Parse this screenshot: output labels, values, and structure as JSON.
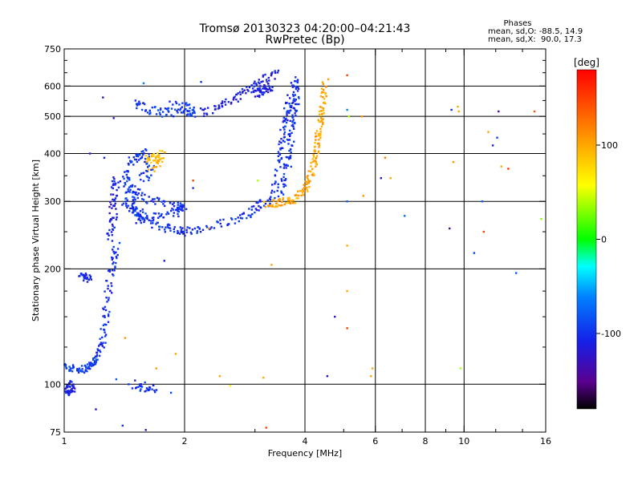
{
  "header": {
    "title": "Tromsø 20130323 04:20:00–04:21:43",
    "subtitle": "RwPretec (Bp)",
    "phases_title": "Phases",
    "phases_o": "mean, sd,O: -88.5, 14.9",
    "phases_x": "mean, sd,X:  90.0, 17.3"
  },
  "colorbar": {
    "label": "[deg]",
    "ticks": [
      "100",
      "0",
      "-100"
    ],
    "tick_values": [
      100,
      0,
      -100
    ],
    "range": [
      -180,
      180
    ]
  },
  "chart_data": {
    "type": "scatter",
    "xlabel": "Frequency [MHz]",
    "ylabel": "Stationary phase Virtual Height [km]",
    "x_scale": "log",
    "y_scale": "log",
    "xlim": [
      1,
      16
    ],
    "ylim": [
      75,
      750
    ],
    "grid": true,
    "x_ticks": [
      1,
      2,
      4,
      6,
      8,
      10,
      16
    ],
    "x_tick_labels": [
      "1",
      "2",
      "4",
      "6",
      "8",
      "10",
      "16"
    ],
    "x_gridlines": [
      2,
      4,
      6,
      8,
      10
    ],
    "x_minor_ticks": [
      3,
      5,
      7,
      9,
      12,
      14
    ],
    "y_ticks": [
      75,
      100,
      200,
      300,
      400,
      500,
      600,
      750
    ],
    "y_tick_labels": [
      "75",
      "100",
      "200",
      "300",
      "400",
      "500",
      "600",
      "750"
    ],
    "y_gridlines": [
      100,
      200,
      300,
      400,
      500,
      600
    ],
    "y_minor_ticks": [
      125,
      150,
      175,
      250,
      350,
      450,
      550,
      650,
      700
    ],
    "traces": [
      {
        "phase": -110,
        "spread": 0.03,
        "points": [
          [
            1.0,
            98
          ],
          [
            1.02,
            95
          ],
          [
            1.05,
            97
          ],
          [
            1.03,
            101
          ]
        ]
      },
      {
        "phase": -95,
        "spread": 0.03,
        "points": [
          [
            1.0,
            112
          ],
          [
            1.05,
            110
          ],
          [
            1.1,
            109
          ],
          [
            1.15,
            111
          ],
          [
            1.18,
            113
          ],
          [
            1.2,
            116
          ]
        ]
      },
      {
        "phase": -100,
        "spread": 0.04,
        "points": [
          [
            1.2,
            118
          ],
          [
            1.24,
            125
          ],
          [
            1.26,
            140
          ],
          [
            1.28,
            160
          ],
          [
            1.3,
            190
          ],
          [
            1.33,
            210
          ],
          [
            1.35,
            230
          ]
        ]
      },
      {
        "phase": -110,
        "spread": 0.03,
        "points": [
          [
            1.1,
            190
          ],
          [
            1.13,
            192
          ],
          [
            1.16,
            188
          ]
        ]
      },
      {
        "phase": -110,
        "spread": 0.05,
        "points": [
          [
            1.3,
            240
          ],
          [
            1.32,
            265
          ],
          [
            1.33,
            290
          ],
          [
            1.34,
            320
          ],
          [
            1.36,
            350
          ]
        ]
      },
      {
        "phase": -100,
        "spread": 0.04,
        "points": [
          [
            1.4,
            300
          ],
          [
            1.5,
            285
          ],
          [
            1.6,
            270
          ],
          [
            1.75,
            258
          ],
          [
            1.9,
            252
          ],
          [
            2.0,
            250
          ],
          [
            2.2,
            252
          ],
          [
            2.5,
            262
          ],
          [
            2.8,
            275
          ],
          [
            3.0,
            288
          ],
          [
            3.2,
            300
          ],
          [
            3.5,
            320
          ],
          [
            3.6,
            360
          ],
          [
            3.65,
            400
          ],
          [
            3.7,
            450
          ],
          [
            3.75,
            500
          ],
          [
            3.8,
            550
          ],
          [
            3.8,
            600
          ],
          [
            3.75,
            620
          ]
        ]
      },
      {
        "phase": -100,
        "spread": 0.035,
        "points": [
          [
            1.45,
            330
          ],
          [
            1.55,
            310
          ],
          [
            1.7,
            300
          ],
          [
            1.9,
            292
          ],
          [
            2.0,
            290
          ],
          [
            1.9,
            280
          ],
          [
            1.7,
            275
          ],
          [
            1.5,
            268
          ]
        ]
      },
      {
        "phase": -95,
        "spread": 0.04,
        "points": [
          [
            1.42,
            360
          ],
          [
            1.44,
            330
          ],
          [
            1.48,
            300
          ],
          [
            1.52,
            280
          ],
          [
            1.56,
            265
          ]
        ]
      },
      {
        "phase": -100,
        "spread": 0.04,
        "points": [
          [
            1.45,
            380
          ],
          [
            1.52,
            390
          ],
          [
            1.6,
            400
          ],
          [
            1.65,
            360
          ],
          [
            1.55,
            340
          ]
        ]
      },
      {
        "phase": -95,
        "spread": 0.04,
        "points": [
          [
            1.5,
            545
          ],
          [
            1.6,
            525
          ],
          [
            1.75,
            512
          ],
          [
            1.9,
            510
          ],
          [
            2.1,
            510
          ],
          [
            2.05,
            525
          ],
          [
            1.85,
            535
          ]
        ]
      },
      {
        "phase": -110,
        "spread": 0.04,
        "points": [
          [
            2.2,
            510
          ],
          [
            2.4,
            525
          ],
          [
            2.6,
            545
          ],
          [
            2.8,
            575
          ],
          [
            3.0,
            600
          ],
          [
            3.2,
            625
          ],
          [
            3.4,
            645
          ]
        ]
      },
      {
        "phase": -110,
        "spread": 0.035,
        "points": [
          [
            3.0,
            570
          ],
          [
            3.1,
            580
          ],
          [
            3.2,
            590
          ],
          [
            3.3,
            600
          ]
        ]
      },
      {
        "phase": -100,
        "spread": 0.035,
        "points": [
          [
            3.35,
            320
          ],
          [
            3.45,
            380
          ],
          [
            3.5,
            430
          ],
          [
            3.55,
            480
          ],
          [
            3.62,
            520
          ],
          [
            3.68,
            560
          ]
        ]
      },
      {
        "phase": 100,
        "spread": 0.035,
        "points": [
          [
            3.2,
            295
          ],
          [
            3.4,
            296
          ],
          [
            3.6,
            300
          ],
          [
            3.8,
            305
          ],
          [
            4.0,
            320
          ],
          [
            4.1,
            340
          ],
          [
            4.2,
            370
          ],
          [
            4.25,
            400
          ],
          [
            4.3,
            430
          ],
          [
            4.35,
            470
          ],
          [
            4.4,
            510
          ],
          [
            4.45,
            560
          ],
          [
            4.5,
            620
          ]
        ]
      },
      {
        "phase": 90,
        "spread": 0.05,
        "points": [
          [
            1.6,
            390
          ],
          [
            1.7,
            380
          ],
          [
            1.75,
            395
          ],
          [
            1.65,
            370
          ]
        ]
      },
      {
        "phase": -100,
        "spread": 0.04,
        "points": [
          [
            1.5,
            100
          ],
          [
            1.6,
            98
          ],
          [
            1.7,
            97
          ]
        ]
      }
    ],
    "scatter_points": [
      {
        "x": 1.25,
        "y": 560,
        "phase": -130
      },
      {
        "x": 1.58,
        "y": 610,
        "phase": -60
      },
      {
        "x": 2.2,
        "y": 615,
        "phase": -100
      },
      {
        "x": 5.1,
        "y": 640,
        "phase": 150
      },
      {
        "x": 5.1,
        "y": 520,
        "phase": -60
      },
      {
        "x": 5.15,
        "y": 500,
        "phase": 40
      },
      {
        "x": 5.55,
        "y": 500,
        "phase": 110
      },
      {
        "x": 9.3,
        "y": 520,
        "phase": -110
      },
      {
        "x": 9.65,
        "y": 530,
        "phase": 100
      },
      {
        "x": 9.7,
        "y": 515,
        "phase": 100
      },
      {
        "x": 12.2,
        "y": 515,
        "phase": -140
      },
      {
        "x": 15.0,
        "y": 515,
        "phase": 140
      },
      {
        "x": 11.5,
        "y": 455,
        "phase": 100
      },
      {
        "x": 11.8,
        "y": 420,
        "phase": -110
      },
      {
        "x": 12.1,
        "y": 440,
        "phase": -90
      },
      {
        "x": 12.4,
        "y": 370,
        "phase": 100
      },
      {
        "x": 12.9,
        "y": 365,
        "phase": 160
      },
      {
        "x": 9.4,
        "y": 380,
        "phase": 110
      },
      {
        "x": 6.35,
        "y": 390,
        "phase": 120
      },
      {
        "x": 6.2,
        "y": 345,
        "phase": -120
      },
      {
        "x": 6.55,
        "y": 345,
        "phase": 100
      },
      {
        "x": 1.16,
        "y": 400,
        "phase": -110
      },
      {
        "x": 1.26,
        "y": 390,
        "phase": -110
      },
      {
        "x": 1.33,
        "y": 495,
        "phase": -120
      },
      {
        "x": 2.1,
        "y": 340,
        "phase": 150
      },
      {
        "x": 2.1,
        "y": 325,
        "phase": -100
      },
      {
        "x": 3.05,
        "y": 340,
        "phase": 40
      },
      {
        "x": 5.1,
        "y": 300,
        "phase": -80
      },
      {
        "x": 5.6,
        "y": 310,
        "phase": 110
      },
      {
        "x": 7.1,
        "y": 275,
        "phase": -70
      },
      {
        "x": 9.2,
        "y": 255,
        "phase": -140
      },
      {
        "x": 11.2,
        "y": 250,
        "phase": 150
      },
      {
        "x": 11.1,
        "y": 300,
        "phase": -80
      },
      {
        "x": 15.6,
        "y": 270,
        "phase": 30
      },
      {
        "x": 10.6,
        "y": 220,
        "phase": -90
      },
      {
        "x": 13.5,
        "y": 195,
        "phase": -80
      },
      {
        "x": 5.1,
        "y": 230,
        "phase": 100
      },
      {
        "x": 1.78,
        "y": 210,
        "phase": -110
      },
      {
        "x": 2.3,
        "y": 255,
        "phase": 110
      },
      {
        "x": 3.3,
        "y": 205,
        "phase": 100
      },
      {
        "x": 5.1,
        "y": 175,
        "phase": 100
      },
      {
        "x": 4.75,
        "y": 150,
        "phase": -120
      },
      {
        "x": 5.1,
        "y": 140,
        "phase": 150
      },
      {
        "x": 1.42,
        "y": 132,
        "phase": 110
      },
      {
        "x": 1.9,
        "y": 120,
        "phase": 100
      },
      {
        "x": 1.7,
        "y": 110,
        "phase": 110
      },
      {
        "x": 2.45,
        "y": 105,
        "phase": 100
      },
      {
        "x": 1.45,
        "y": 100,
        "phase": -100
      },
      {
        "x": 1.2,
        "y": 86,
        "phase": -130
      },
      {
        "x": 3.15,
        "y": 104,
        "phase": 100
      },
      {
        "x": 4.55,
        "y": 105,
        "phase": -130
      },
      {
        "x": 5.9,
        "y": 110,
        "phase": 100
      },
      {
        "x": 5.85,
        "y": 105,
        "phase": 100
      },
      {
        "x": 9.8,
        "y": 110,
        "phase": 40
      },
      {
        "x": 1.4,
        "y": 78,
        "phase": -100
      },
      {
        "x": 1.6,
        "y": 76,
        "phase": -130
      },
      {
        "x": 3.2,
        "y": 77,
        "phase": 150
      },
      {
        "x": 1.85,
        "y": 95,
        "phase": -90
      },
      {
        "x": 2.6,
        "y": 99,
        "phase": 60
      },
      {
        "x": 1.35,
        "y": 103,
        "phase": -80
      }
    ]
  }
}
